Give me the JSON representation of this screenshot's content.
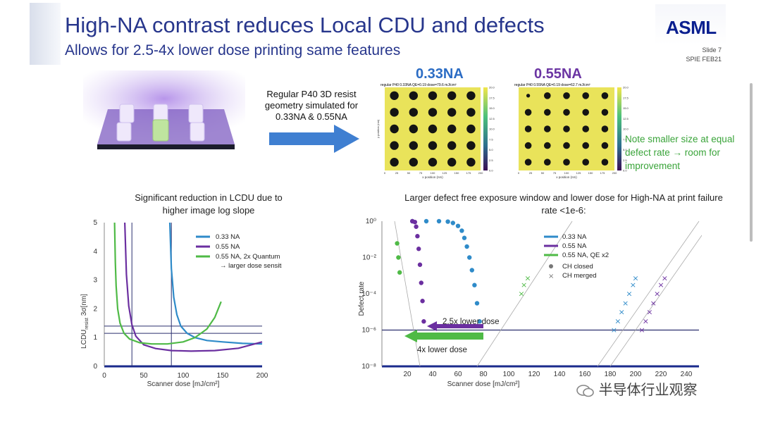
{
  "slide": {
    "title": "High-NA contrast reduces Local CDU and defects",
    "subtitle": "Allows for 2.5-4x lower dose printing same features",
    "logo": "ASML",
    "slide_number": "Slide 7",
    "event": "SPIE FEB21"
  },
  "simulation": {
    "caption": "Regular P40 3D resist geometry simulated for 0.33NA & 0.55NA",
    "label_033": "0.33NA",
    "label_055": "0.55NA",
    "map_033_title": "regular P40 0.33NA QE=0.19 dose=79.6 mJ/cm²",
    "map_055_title": "regular P40 0.55NA QE=0.19 dose=62.7 mJ/cm²",
    "map_033_xlabel": "x position (nm)",
    "map_055_xlabel": "x position (nm)",
    "map_ylabel": "y position (nm)",
    "map_ticks": [
      "0",
      "25",
      "50",
      "75",
      "100",
      "125",
      "150",
      "175",
      "200"
    ],
    "colorbar_ticks": [
      "20.0",
      "17.5",
      "15.0",
      "12.5",
      "10.0",
      "7.5",
      "5.0",
      "2.5",
      "0.0"
    ],
    "note": "Note smaller size at equal defect rate → room for improvement",
    "colors": {
      "field": "#e9e35a",
      "hole": "#141414",
      "arrow": "#3f7fd1"
    }
  },
  "lcdu_chart": {
    "title": "Significant reduction in LCDU due to higher image log slope",
    "xlabel": "Scanner dose [mJ/cm²]",
    "ylabel_main": "LCDU",
    "ylabel_sub": "resist",
    "ylabel_tail": "3σ[nm]",
    "legend": [
      "0.33 NA",
      "0.55 NA",
      "0.55 NA, 2x Quantum Efficiency",
      "→ larger dose sensitivity"
    ]
  },
  "defect_chart": {
    "title": "Larger defect free exposure window and lower dose for High-NA at print failure rate <1e-6:",
    "xlabel": "Scanner dose [mJ/cm²]",
    "ylabel": "Defect rate",
    "legend": [
      "0.33 NA",
      "0.55 NA",
      "0.55 NA, QE x2",
      "CH closed",
      "CH merged"
    ],
    "annotation_25x": "2.5x lower dose",
    "annotation_4x": "4x lower dose"
  },
  "chart_data": [
    {
      "type": "line",
      "title": "Significant reduction in LCDU due to higher image log slope",
      "xlabel": "Scanner dose [mJ/cm²]",
      "ylabel": "LCDUresist 3σ[nm]",
      "xlim": [
        0,
        200
      ],
      "ylim": [
        0,
        5
      ],
      "xticks": [
        0,
        50,
        100,
        150,
        200
      ],
      "yticks": [
        0,
        1,
        2,
        3,
        4,
        5
      ],
      "hlines": [
        1.15,
        1.4
      ],
      "vlines": [
        35,
        85
      ],
      "legend_position": "top-right",
      "series": [
        {
          "name": "0.33 NA",
          "color": "#2f8bc9",
          "x": [
            83,
            85,
            88,
            92,
            97,
            105,
            115,
            130,
            150,
            175,
            200
          ],
          "y": [
            5,
            3.4,
            2.4,
            1.8,
            1.4,
            1.15,
            1.0,
            0.9,
            0.85,
            0.8,
            0.78
          ]
        },
        {
          "name": "0.55 NA",
          "color": "#6b2fa0",
          "x": [
            26,
            28,
            31,
            35,
            40,
            50,
            65,
            85,
            110,
            140,
            170,
            200
          ],
          "y": [
            5,
            3.2,
            2.1,
            1.45,
            1.05,
            0.75,
            0.62,
            0.55,
            0.53,
            0.55,
            0.63,
            0.85
          ]
        },
        {
          "name": "0.55 NA, 2x Quantum Efficiency",
          "color": "#4fba46",
          "x": [
            13,
            14,
            15,
            17,
            20,
            25,
            32,
            45,
            60,
            80,
            100,
            115,
            130,
            140,
            148
          ],
          "y": [
            5,
            3.6,
            2.8,
            2.0,
            1.5,
            1.15,
            0.95,
            0.82,
            0.78,
            0.78,
            0.85,
            1.0,
            1.3,
            1.7,
            2.25
          ]
        }
      ]
    },
    {
      "type": "scatter",
      "title": "Larger defect free exposure window and lower dose for High-NA at print failure rate <1e-6:",
      "xlabel": "Scanner dose [mJ/cm²]",
      "ylabel": "Defect rate",
      "log_y": true,
      "xlim": [
        0,
        250
      ],
      "ylim": [
        1e-08,
        1
      ],
      "xticks": [
        20,
        40,
        60,
        80,
        100,
        120,
        140,
        160,
        180,
        200,
        220,
        240
      ],
      "yticks": [
        "10⁰",
        "10⁻²",
        "10⁻⁴",
        "10⁻⁶",
        "10⁻⁸"
      ],
      "hline": 1e-06,
      "legend_position": "top-right",
      "series": [
        {
          "name": "0.33 NA",
          "color": "#2f8bc9",
          "marker": "CH closed",
          "x": [
            24,
            35,
            45,
            52,
            56,
            60,
            63,
            65,
            67,
            69,
            71,
            73,
            75,
            77
          ],
          "y": [
            1,
            1,
            1,
            0.95,
            0.8,
            0.55,
            0.3,
            0.12,
            0.04,
            0.01,
            0.002,
            0.0003,
            3e-05,
            3e-06
          ]
        },
        {
          "name": "0.55 NA",
          "color": "#6b2fa0",
          "marker": "CH closed",
          "x": [
            24,
            26,
            27,
            28,
            29,
            30,
            31,
            32,
            33
          ],
          "y": [
            1,
            0.9,
            0.5,
            0.15,
            0.03,
            0.004,
            0.0004,
            4e-05,
            3e-06
          ]
        },
        {
          "name": "0.55 NA, QE x2",
          "color": "#4fba46",
          "marker": "CH closed",
          "x": [
            12,
            13,
            14
          ],
          "y": [
            0.06,
            0.01,
            0.0015
          ]
        },
        {
          "name": "0.33 NA",
          "color": "#2f8bc9",
          "marker": "CH merged",
          "x": [
            183,
            186,
            189,
            192,
            195,
            198,
            200
          ],
          "y": [
            1e-06,
            3e-06,
            1e-05,
            3e-05,
            0.0001,
            0.0003,
            0.0007
          ]
        },
        {
          "name": "0.55 NA",
          "color": "#6b2fa0",
          "marker": "CH merged",
          "x": [
            205,
            208,
            211,
            214,
            217,
            220,
            223
          ],
          "y": [
            1e-06,
            3e-06,
            1e-05,
            3e-05,
            0.0001,
            0.0003,
            0.0007
          ]
        },
        {
          "name": "0.55 NA, QE x2",
          "color": "#4fba46",
          "marker": "CH merged",
          "x": [
            110,
            112,
            115
          ],
          "y": [
            0.0001,
            0.0003,
            0.0007
          ]
        }
      ]
    }
  ],
  "watermark": "半导体行业观察"
}
